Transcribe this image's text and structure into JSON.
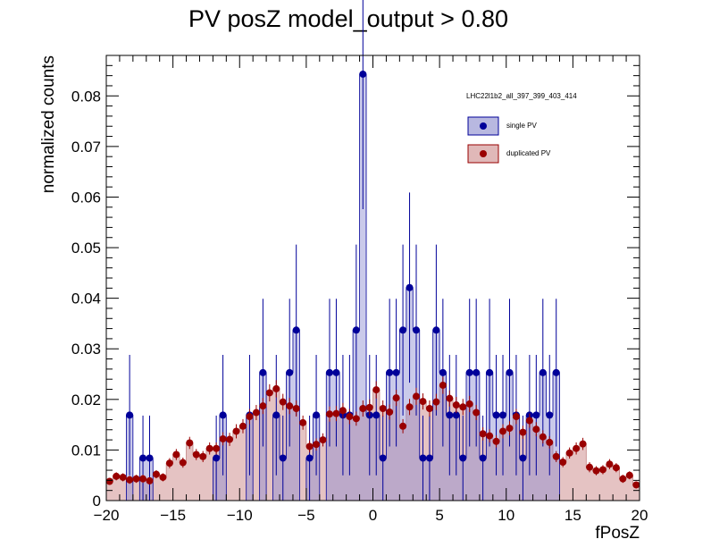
{
  "chart_data": {
    "type": "histogram-errorbar",
    "title": "PV posZ  model_output > 0.80",
    "xlabel": "fPosZ",
    "ylabel": "normalized counts",
    "xlim": [
      -20,
      20
    ],
    "ylim": [
      0,
      0.088
    ],
    "x_ticks": [
      "−20",
      "−15",
      "−10",
      "−5",
      "0",
      "5",
      "10",
      "15",
      "20"
    ],
    "y_ticks": [
      "0",
      "0.01",
      "0.02",
      "0.03",
      "0.04",
      "0.05",
      "0.06",
      "0.07",
      "0.08"
    ],
    "x_tick_values": [
      -20,
      -15,
      -10,
      -5,
      0,
      5,
      10,
      15,
      20
    ],
    "y_tick_values": [
      0,
      0.01,
      0.02,
      0.03,
      0.04,
      0.05,
      0.06,
      0.07,
      0.08
    ],
    "legend_header": "LHC22l1b2_all_397_399_403_414",
    "legend_position": "top-right",
    "bin_edges": {
      "start": -20,
      "width": 0.5,
      "count": 80
    },
    "series": [
      {
        "name": "single PV",
        "color": "#000099",
        "fill": "#b8b8e0",
        "values": [
          0,
          0,
          0,
          0.0169,
          0,
          0.0084,
          0.0084,
          0,
          0,
          0,
          0,
          0,
          0,
          0,
          0,
          0,
          0.0084,
          0.0169,
          0,
          0,
          0,
          0.0169,
          0,
          0.0253,
          0,
          0.0169,
          0.0084,
          0.0253,
          0.0337,
          0,
          0.0084,
          0.0169,
          0,
          0.0253,
          0.0253,
          0.0169,
          0.0169,
          0.0337,
          0.0843,
          0.0169,
          0.0169,
          0.0084,
          0.0253,
          0.0253,
          0.0337,
          0.0421,
          0.0337,
          0.0084,
          0.0084,
          0.0337,
          0.0253,
          0.0169,
          0.0169,
          0.0084,
          0.0253,
          0.0253,
          0.0084,
          0.0253,
          0.0169,
          0.0169,
          0.0253,
          0.0169,
          0.0084,
          0.0169,
          0.0169,
          0.0253,
          0.0169,
          0.0253,
          0,
          0,
          0,
          0,
          0,
          0,
          0,
          0,
          0,
          0,
          0,
          0
        ],
        "errors": [
          0,
          0,
          0,
          0.0119,
          0,
          0.0084,
          0.0084,
          0,
          0,
          0,
          0,
          0,
          0,
          0,
          0,
          0,
          0.0084,
          0.0119,
          0,
          0,
          0,
          0.0119,
          0,
          0.0146,
          0,
          0.0119,
          0.0084,
          0.0146,
          0.0169,
          0,
          0.0084,
          0.0119,
          0,
          0.0146,
          0.0146,
          0.0119,
          0.0119,
          0.0169,
          0.0267,
          0.0119,
          0.0119,
          0.0084,
          0.0146,
          0.0146,
          0.0169,
          0.0188,
          0.0169,
          0.0084,
          0.0084,
          0.0169,
          0.0146,
          0.0119,
          0.0119,
          0.0084,
          0.0146,
          0.0146,
          0.0084,
          0.0146,
          0.0119,
          0.0119,
          0.0146,
          0.0119,
          0.0084,
          0.0119,
          0.0119,
          0.0146,
          0.0119,
          0.0146,
          0,
          0,
          0,
          0,
          0,
          0,
          0,
          0,
          0,
          0,
          0,
          0
        ]
      },
      {
        "name": "duplicated PV",
        "color": "#990000",
        "fill": "#e0b8b8",
        "values": [
          0.0038,
          0.0048,
          0.0046,
          0.0041,
          0.0043,
          0.0043,
          0.0039,
          0.0052,
          0.0046,
          0.0074,
          0.0091,
          0.0075,
          0.0114,
          0.0091,
          0.0087,
          0.0103,
          0.0103,
          0.0122,
          0.0121,
          0.0137,
          0.0147,
          0.0166,
          0.0174,
          0.0187,
          0.0213,
          0.0221,
          0.0195,
          0.0187,
          0.0182,
          0.0154,
          0.0107,
          0.0111,
          0.012,
          0.0171,
          0.0172,
          0.0178,
          0.0166,
          0.0162,
          0.0182,
          0.0184,
          0.0219,
          0.0182,
          0.0175,
          0.0203,
          0.0147,
          0.0185,
          0.0206,
          0.0196,
          0.0182,
          0.0195,
          0.0228,
          0.0202,
          0.0189,
          0.0185,
          0.0191,
          0.0174,
          0.0132,
          0.0128,
          0.0117,
          0.0137,
          0.0143,
          0.0166,
          0.0135,
          0.0158,
          0.0141,
          0.0126,
          0.0115,
          0.0087,
          0.0076,
          0.0094,
          0.0103,
          0.0112,
          0.0066,
          0.0059,
          0.0061,
          0.0072,
          0.0065,
          0.0043,
          0.005,
          0.0031
        ],
        "extra_values_tail": [
          0.0041,
          0.0043,
          0.0041
        ],
        "errors": [
          0.0007,
          0.0008,
          0.0008,
          0.0008,
          0.0008,
          0.0008,
          0.0007,
          0.0008,
          0.0008,
          0.001,
          0.0011,
          0.001,
          0.0012,
          0.0011,
          0.0011,
          0.0012,
          0.0012,
          0.0013,
          0.0013,
          0.0014,
          0.0014,
          0.0015,
          0.0015,
          0.0016,
          0.0017,
          0.0017,
          0.0016,
          0.0016,
          0.0016,
          0.0014,
          0.0012,
          0.0012,
          0.0013,
          0.0015,
          0.0015,
          0.0015,
          0.0015,
          0.0014,
          0.0016,
          0.0016,
          0.0017,
          0.0016,
          0.0015,
          0.0016,
          0.0014,
          0.0016,
          0.0017,
          0.0016,
          0.0016,
          0.0016,
          0.0017,
          0.0016,
          0.0016,
          0.0016,
          0.0016,
          0.0015,
          0.0013,
          0.0013,
          0.0012,
          0.0014,
          0.0014,
          0.0015,
          0.0013,
          0.0014,
          0.0014,
          0.0013,
          0.0012,
          0.0011,
          0.001,
          0.0011,
          0.0012,
          0.0012,
          0.001,
          0.0009,
          0.0009,
          0.001,
          0.0009,
          0.0008,
          0.0008,
          0.0007
        ]
      }
    ]
  }
}
